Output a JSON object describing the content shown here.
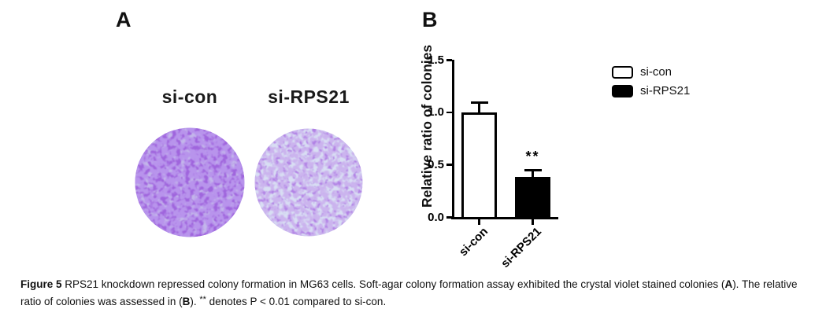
{
  "panel_a": {
    "label": "A",
    "dish_labels": [
      "si-con",
      "si-RPS21"
    ],
    "stain_colors": {
      "dense_dish_base": "#c3b7ea",
      "dense_dish_speckle": "#7a4dd6",
      "dense_dish_dark_speckle": "#5a22b8",
      "sparse_dish_base": "#d8def3",
      "sparse_dish_speckle": "#9a76da",
      "sparse_dish_dark_speckle": "#7038c8"
    }
  },
  "panel_b": {
    "label": "B"
  },
  "chart_data": {
    "type": "bar",
    "title": "",
    "xlabel": "",
    "ylabel": "Relative ratio of colonies",
    "categories": [
      "si-con",
      "si-RPS21"
    ],
    "values": [
      1.0,
      0.38
    ],
    "errors_plus": [
      0.1,
      0.08
    ],
    "ylim": [
      0,
      1.5
    ],
    "yticks": [
      0.0,
      0.5,
      1.0,
      1.5
    ],
    "ytick_labels": [
      "0.0",
      "0.5",
      "1.0",
      "1.5"
    ],
    "grid": false,
    "bar_colors": [
      "#ffffff",
      "#000000"
    ],
    "bar_border_color": "#000000",
    "legend": {
      "position": "right",
      "entries": [
        {
          "label": "si-con",
          "fill": "#ffffff"
        },
        {
          "label": "si-RPS21",
          "fill": "#000000"
        }
      ]
    },
    "annotations": [
      {
        "text": "**",
        "category_index": 1
      }
    ]
  },
  "caption": {
    "figure_label": "Figure 5",
    "text_1": " RPS21 knockdown repressed colony formation in MG63 cells. Soft-agar colony formation assay exhibited the crystal violet stained colonies (",
    "bold_a": "A",
    "text_2": "). The relative ratio of colonies was assessed in (",
    "bold_b": "B",
    "text_3": "). ",
    "stars": "**",
    "text_4": " denotes P < 0.01 compared to si-con."
  }
}
